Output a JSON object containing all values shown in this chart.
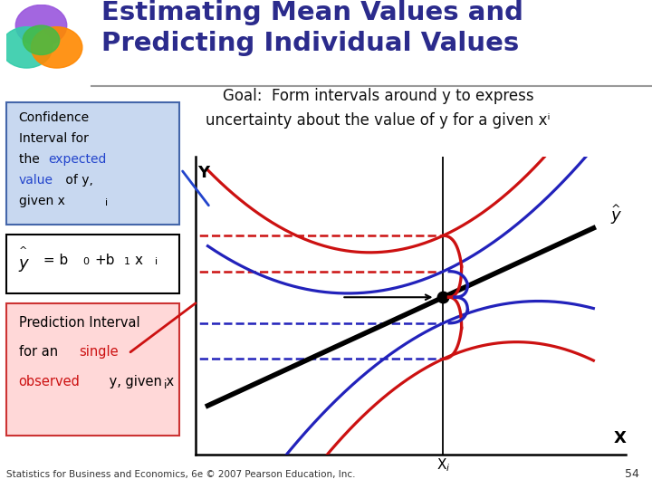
{
  "title_line1": "Estimating Mean Values and",
  "title_line2": "Predicting Individual Values",
  "title_color": "#2B2B8C",
  "background_color": "#FFFFFF",
  "footer": "Statistics for Business and Economics, 6e © 2007 Pearson Education, Inc.",
  "footer_page": "54",
  "plot_bg": "#FFFFFF",
  "regression_color": "#000000",
  "ci_color": "#2222BB",
  "pi_color": "#CC1111",
  "x_label": "X",
  "xi_label": "X",
  "y_label": "Y",
  "yhat_label": "y"
}
